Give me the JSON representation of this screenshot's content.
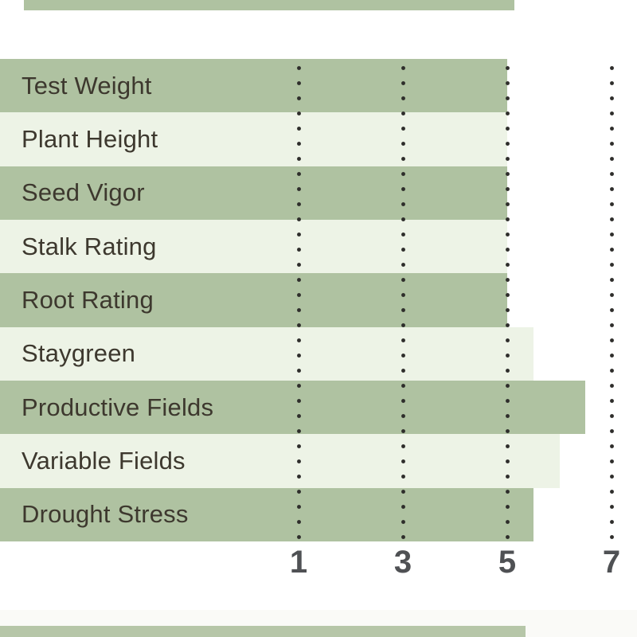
{
  "page": {
    "background": "#ffffff"
  },
  "chart_data": {
    "type": "bar",
    "orientation": "horizontal",
    "title": "",
    "xlabel": "",
    "ylabel": "",
    "categories": [
      "Test Weight",
      "Plant Height",
      "Seed Vigor",
      "Stalk Rating",
      "Root Rating",
      "Staygreen",
      "Productive Fields",
      "Variable Fields",
      "Drought Stress"
    ],
    "values": [
      5,
      5,
      5,
      5,
      5,
      5.5,
      6.5,
      6,
      5.5
    ],
    "x_ticks": [
      "1",
      "3",
      "5",
      "7"
    ],
    "x_tick_values": [
      1,
      3,
      5,
      7
    ],
    "grid": "dotted-vertical",
    "legend": "none",
    "colors": {
      "row_dark": "#afc2a1",
      "row_light": "#edf3e6",
      "grid_dot": "#2e2d2b",
      "tick_label": "#4f5154",
      "category_label": "#3d382e"
    }
  },
  "cropped_edges": {
    "top_partial_row_color": "#afc2a1",
    "bottom_partial_row_color": "#b6c6a8",
    "bottom_faint_band_color": "#fafaf7"
  }
}
